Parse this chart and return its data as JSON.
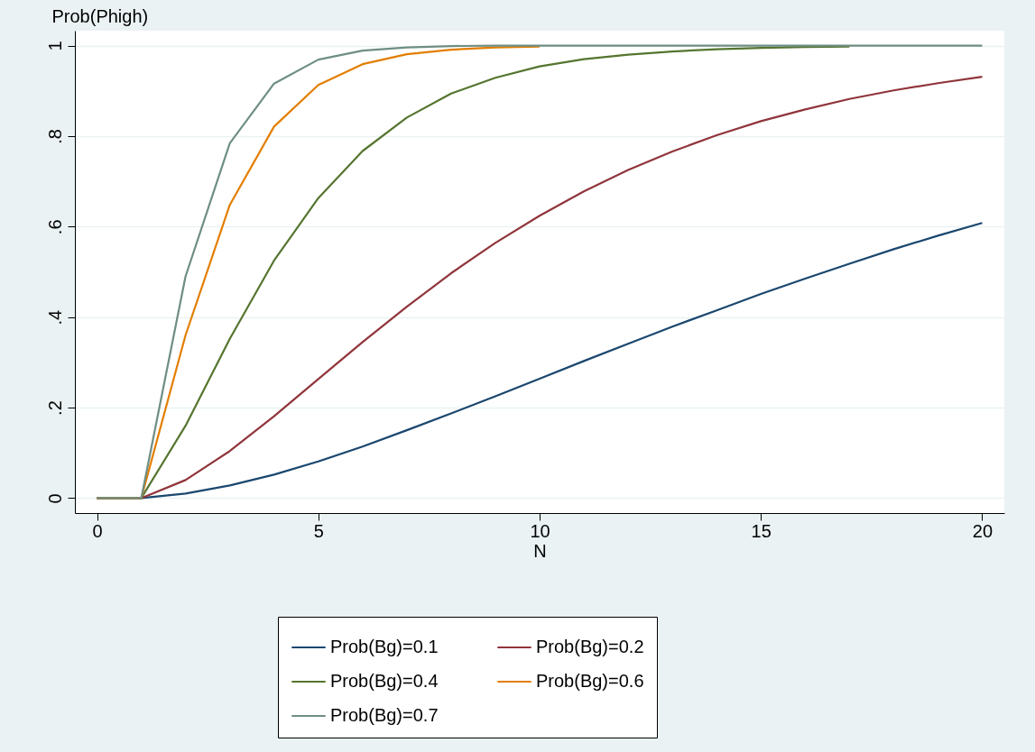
{
  "chart_data": {
    "type": "line",
    "xlabel": "N",
    "ylabel": "Prob(Phigh)",
    "x": [
      0,
      1,
      2,
      3,
      4,
      5,
      6,
      7,
      8,
      9,
      10,
      11,
      12,
      13,
      14,
      15,
      16,
      17,
      18,
      19,
      20
    ],
    "series": [
      {
        "name": "Prob(Bg)=0.1",
        "color": "#1a476f",
        "values": [
          0,
          0,
          0.01,
          0.028,
          0.052,
          0.081,
          0.114,
          0.15,
          0.187,
          0.225,
          0.264,
          0.303,
          0.341,
          0.379,
          0.415,
          0.451,
          0.485,
          0.518,
          0.55,
          0.58,
          0.608
        ]
      },
      {
        "name": "Prob(Bg)=0.2",
        "color": "#90353b",
        "values": [
          0,
          0,
          0.04,
          0.104,
          0.181,
          0.263,
          0.345,
          0.423,
          0.497,
          0.564,
          0.624,
          0.678,
          0.725,
          0.766,
          0.802,
          0.833,
          0.859,
          0.882,
          0.901,
          0.917,
          0.931
        ]
      },
      {
        "name": "Prob(Bg)=0.4",
        "color": "#55752f",
        "values": [
          0,
          0,
          0.16,
          0.352,
          0.525,
          0.663,
          0.767,
          0.841,
          0.894,
          0.929,
          0.954,
          0.97,
          0.98,
          0.987,
          0.992,
          0.995,
          0.997,
          0.998,
          null,
          null,
          null
        ]
      },
      {
        "name": "Prob(Bg)=0.6",
        "color": "#e37e00",
        "values": [
          0,
          0,
          0.36,
          0.648,
          0.821,
          0.913,
          0.959,
          0.981,
          0.991,
          0.996,
          0.998,
          null,
          null,
          null,
          null,
          null,
          null,
          null,
          null,
          null,
          null
        ]
      },
      {
        "name": "Prob(Bg)=0.7",
        "color": "#6e8e84",
        "values": [
          0,
          0,
          0.49,
          0.784,
          0.916,
          0.969,
          0.989,
          0.996,
          0.999,
          1,
          1,
          1,
          1,
          1,
          1,
          1,
          1,
          1,
          1,
          1,
          1
        ]
      }
    ],
    "xlim": [
      -0.5,
      20.5
    ],
    "xticks": [
      0,
      5,
      10,
      15,
      20
    ],
    "ylim": [
      -0.033,
      1.033
    ],
    "yticks": [
      0,
      {
        "value": 0.2,
        "label": ".2"
      },
      {
        "value": 0.4,
        "label": ".4"
      },
      {
        "value": 0.6,
        "label": ".6"
      },
      {
        "value": 0.8,
        "label": ".8"
      },
      1
    ],
    "grid": "y",
    "legend": "bottom",
    "marker": "none",
    "line_style": "solid"
  }
}
